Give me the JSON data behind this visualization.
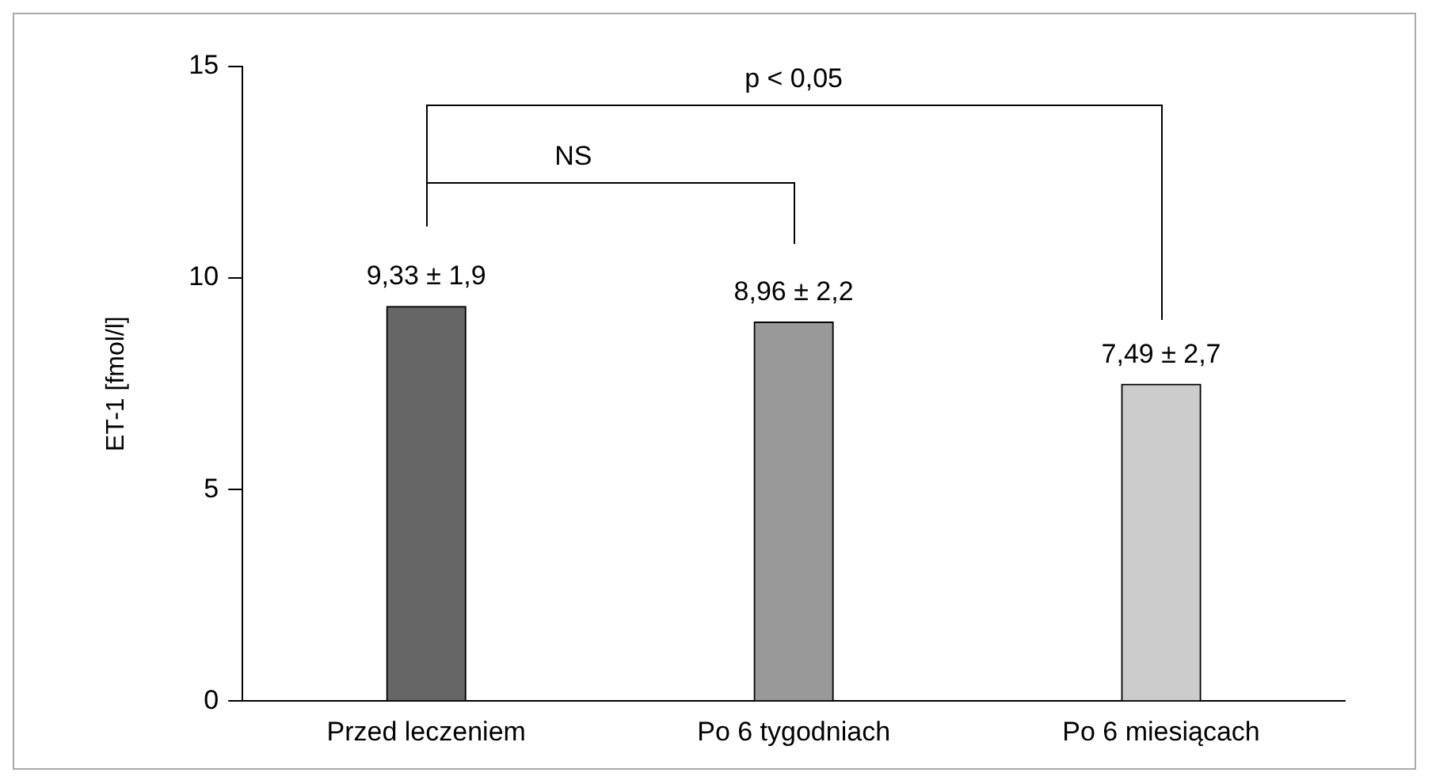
{
  "chart_data": {
    "type": "bar",
    "ylabel": "ET-1 [fmol/l]",
    "categories": [
      "Przed leczeniem",
      "Po 6 tygodniach",
      "Po 6 miesiącach"
    ],
    "values": [
      9.33,
      8.96,
      7.49
    ],
    "colors": [
      "#666666",
      "#999999",
      "#cccccc"
    ],
    "value_labels": [
      "9,33 ± 1,9",
      "8,96 ± 2,2",
      "7,49 ± 2,7"
    ],
    "ylim": [
      0,
      15
    ],
    "yticks": [
      0,
      5,
      10,
      15
    ],
    "grid": false,
    "legend": false,
    "annotations": [
      "NS",
      "p < 0,05"
    ]
  }
}
